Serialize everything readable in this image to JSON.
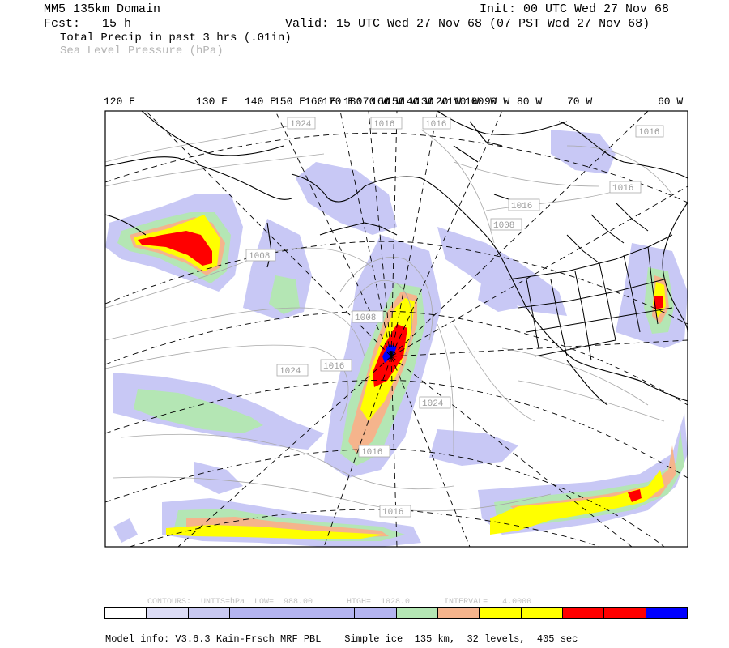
{
  "header": {
    "domain": "MM5 135km Domain",
    "init": "Init: 00 UTC Wed 27 Nov 68",
    "fcst": "Fcst:   15 h",
    "valid": "Valid: 15 UTC Wed 27 Nov 68 (07 PST Wed 27 Nov 68)",
    "field1": "Total Precip in past 3 hrs (.01in)",
    "field2": "Sea Level Pressure (hPa)"
  },
  "lon_labels": [
    "120 E",
    "130 E",
    "140 E",
    "150 E",
    "160 E",
    "170 E",
    "180",
    "170 W",
    "160 W",
    "150 W",
    "140 W",
    "130 W",
    "120 W",
    "110 W",
    "100 W",
    "90 W",
    "80 W",
    "70 W",
    "60 W"
  ],
  "pressure_labels": [
    "1024",
    "1016",
    "1016",
    "1016",
    "1016",
    "1008",
    "1008",
    "1008",
    "1016",
    "1024",
    "1024",
    "1016",
    "1016",
    "1016"
  ],
  "contour_info": {
    "text": "CONTOURS:  UNITS=hPa  LOW=  988.00       HIGH=  1028.0       INTERVAL=   4.0000"
  },
  "legend": {
    "colors": [
      "#ffffff",
      "#dcdcf5",
      "#c8c8f0",
      "#b4b4f0",
      "#b4b4f0",
      "#b4b4f0",
      "#b4b4f0",
      "#b4e6b4",
      "#f5b48c",
      "#ffff00",
      "#ffff00",
      "#ff0000",
      "#ff0000",
      "#0000ff"
    ]
  },
  "footer": "Model info: V3.6.3 Kain-Frsch MRF PBL    Simple ice  135 km,  32 levels,  405 sec",
  "colors": {
    "light_blue": "#c8c8f5",
    "green": "#b4e6b4",
    "orange": "#f5b48c",
    "yellow": "#ffff00",
    "red": "#ff0000",
    "blue": "#0000ff"
  }
}
